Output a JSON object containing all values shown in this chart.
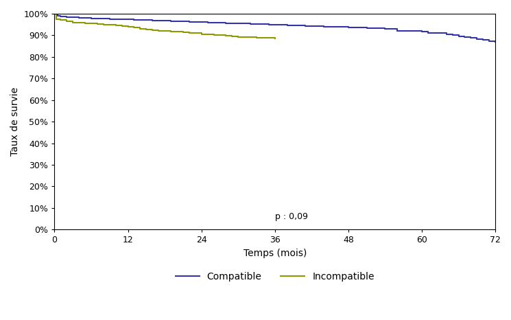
{
  "title": "",
  "xlabel": "Temps (mois)",
  "ylabel": "Taux de survie",
  "xlim": [
    0,
    72
  ],
  "ylim": [
    0,
    1.0
  ],
  "xticks": [
    0,
    12,
    24,
    36,
    48,
    60,
    72
  ],
  "yticks": [
    0.0,
    0.1,
    0.2,
    0.3,
    0.4,
    0.5,
    0.6,
    0.7,
    0.8,
    0.9,
    1.0
  ],
  "ytick_labels": [
    "0%",
    "10%",
    "20%",
    "30%",
    "40%",
    "50%",
    "60%",
    "70%",
    "80%",
    "90%",
    "100%"
  ],
  "p_text": "p : 0,09",
  "compatible_color": "#3333aa",
  "incompatible_color": "#8a9a00",
  "compatible_label": "Compatible",
  "incompatible_label": "Incompatible",
  "compatible_x": [
    0,
    0.5,
    1,
    2,
    3,
    4,
    5,
    6,
    7,
    8,
    9,
    10,
    11,
    12,
    13,
    14,
    15,
    16,
    17,
    18,
    19,
    20,
    21,
    22,
    23,
    24,
    25,
    26,
    27,
    28,
    29,
    30,
    31,
    32,
    33,
    34,
    35,
    36,
    37,
    38,
    39,
    40,
    41,
    42,
    43,
    44,
    45,
    46,
    47,
    48,
    49,
    50,
    51,
    52,
    53,
    54,
    55,
    56,
    57,
    58,
    59,
    60,
    61,
    62,
    63,
    64,
    65,
    66,
    67,
    68,
    69,
    70,
    71,
    72
  ],
  "compatible_y": [
    1.0,
    0.99,
    0.987,
    0.985,
    0.983,
    0.982,
    0.98,
    0.979,
    0.978,
    0.977,
    0.976,
    0.975,
    0.974,
    0.973,
    0.972,
    0.971,
    0.97,
    0.969,
    0.968,
    0.967,
    0.966,
    0.965,
    0.964,
    0.963,
    0.962,
    0.961,
    0.96,
    0.959,
    0.958,
    0.957,
    0.956,
    0.955,
    0.954,
    0.953,
    0.952,
    0.951,
    0.95,
    0.949,
    0.948,
    0.947,
    0.946,
    0.945,
    0.944,
    0.943,
    0.942,
    0.941,
    0.94,
    0.939,
    0.938,
    0.937,
    0.936,
    0.935,
    0.934,
    0.933,
    0.932,
    0.931,
    0.93,
    0.922,
    0.921,
    0.92,
    0.919,
    0.918,
    0.912,
    0.911,
    0.91,
    0.905,
    0.9,
    0.895,
    0.892,
    0.889,
    0.883,
    0.878,
    0.873,
    0.868
  ],
  "incompatible_x": [
    0,
    0.3,
    1,
    2,
    3,
    4,
    5,
    6,
    7,
    8,
    9,
    10,
    11,
    12,
    13,
    14,
    15,
    16,
    17,
    18,
    19,
    20,
    21,
    22,
    23,
    24,
    25,
    26,
    27,
    28,
    29,
    30,
    31,
    32,
    33,
    34,
    35,
    36
  ],
  "incompatible_y": [
    1.0,
    0.975,
    0.97,
    0.965,
    0.96,
    0.958,
    0.956,
    0.954,
    0.952,
    0.95,
    0.948,
    0.945,
    0.942,
    0.94,
    0.935,
    0.93,
    0.928,
    0.925,
    0.922,
    0.92,
    0.918,
    0.916,
    0.913,
    0.912,
    0.91,
    0.906,
    0.904,
    0.902,
    0.9,
    0.898,
    0.896,
    0.893,
    0.892,
    0.891,
    0.89,
    0.889,
    0.888,
    0.887
  ],
  "background_color": "#ffffff",
  "line_width": 1.5
}
